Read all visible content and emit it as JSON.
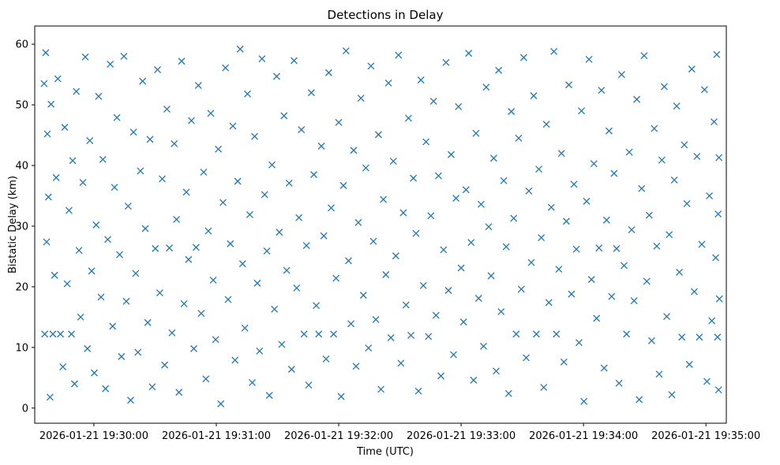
{
  "chart_data": {
    "type": "scatter",
    "title": "Detections in Delay",
    "xlabel": "Time (UTC)",
    "ylabel": "Bistatic Delay (km)",
    "x_unit": "seconds after 2026-01-21 19:30:00",
    "xlim": [
      -29,
      310
    ],
    "ylim": [
      -2.5,
      63
    ],
    "x_ticks": [
      {
        "value": 0,
        "label": "2026-01-21 19:30:00"
      },
      {
        "value": 60,
        "label": "2026-01-21 19:31:00"
      },
      {
        "value": 120,
        "label": "2026-01-21 19:32:00"
      },
      {
        "value": 180,
        "label": "2026-01-21 19:33:00"
      },
      {
        "value": 240,
        "label": "2026-01-21 19:34:00"
      },
      {
        "value": 300,
        "label": "2026-01-21 19:35:00"
      }
    ],
    "y_ticks": [
      0,
      10,
      20,
      30,
      40,
      50,
      60
    ],
    "marker": "x",
    "marker_color": "#1f77b4",
    "series": [
      {
        "name": "Detections",
        "points": [
          [
            -24.4,
            53.5
          ],
          [
            -24.1,
            12.2
          ],
          [
            -23.6,
            58.6
          ],
          [
            -23.2,
            27.4
          ],
          [
            -22.8,
            45.2
          ],
          [
            -22.3,
            34.8
          ],
          [
            -21.5,
            1.8
          ],
          [
            -21.0,
            50.1
          ],
          [
            -20.1,
            12.2
          ],
          [
            -19.3,
            21.9
          ],
          [
            -18.5,
            38.0
          ],
          [
            -17.7,
            54.3
          ],
          [
            -16.4,
            12.2
          ],
          [
            -15.2,
            6.8
          ],
          [
            -14.3,
            46.3
          ],
          [
            -13.1,
            20.5
          ],
          [
            -12.2,
            32.6
          ],
          [
            -11.0,
            12.2
          ],
          [
            -10.4,
            40.8
          ],
          [
            -9.5,
            4.0
          ],
          [
            -8.6,
            52.2
          ],
          [
            -7.3,
            26.0
          ],
          [
            -6.5,
            15.0
          ],
          [
            -5.4,
            37.2
          ],
          [
            -4.2,
            57.9
          ],
          [
            -3.2,
            9.8
          ],
          [
            -2.0,
            44.1
          ],
          [
            -1.1,
            22.6
          ],
          [
            0.2,
            5.8
          ],
          [
            1.1,
            30.2
          ],
          [
            2.3,
            51.4
          ],
          [
            3.5,
            18.3
          ],
          [
            4.4,
            41.0
          ],
          [
            5.7,
            3.2
          ],
          [
            6.8,
            27.8
          ],
          [
            8.0,
            56.7
          ],
          [
            9.2,
            13.5
          ],
          [
            10.1,
            36.4
          ],
          [
            11.3,
            47.9
          ],
          [
            12.6,
            25.3
          ],
          [
            13.5,
            8.5
          ],
          [
            14.7,
            58.0
          ],
          [
            15.9,
            17.6
          ],
          [
            16.8,
            33.3
          ],
          [
            18.0,
            1.3
          ],
          [
            19.4,
            45.5
          ],
          [
            20.5,
            22.2
          ],
          [
            21.6,
            9.2
          ],
          [
            22.8,
            39.1
          ],
          [
            23.9,
            53.9
          ],
          [
            25.2,
            29.6
          ],
          [
            26.4,
            14.1
          ],
          [
            27.5,
            44.3
          ],
          [
            28.6,
            3.5
          ],
          [
            30.1,
            26.3
          ],
          [
            31.2,
            55.8
          ],
          [
            32.3,
            19.0
          ],
          [
            33.5,
            37.8
          ],
          [
            34.7,
            7.1
          ],
          [
            35.8,
            49.3
          ],
          [
            37.0,
            26.4
          ],
          [
            38.3,
            12.4
          ],
          [
            39.4,
            43.6
          ],
          [
            40.5,
            31.1
          ],
          [
            41.7,
            2.6
          ],
          [
            43.0,
            57.2
          ],
          [
            44.2,
            17.2
          ],
          [
            45.3,
            35.6
          ],
          [
            46.4,
            24.5
          ],
          [
            47.8,
            47.4
          ],
          [
            49.0,
            9.8
          ],
          [
            50.1,
            26.5
          ],
          [
            51.2,
            53.2
          ],
          [
            52.6,
            15.6
          ],
          [
            53.8,
            38.9
          ],
          [
            54.9,
            4.8
          ],
          [
            56.1,
            29.2
          ],
          [
            57.3,
            48.6
          ],
          [
            58.5,
            21.1
          ],
          [
            59.7,
            11.3
          ],
          [
            61.0,
            42.7
          ],
          [
            62.2,
            0.7
          ],
          [
            63.3,
            33.9
          ],
          [
            64.5,
            56.1
          ],
          [
            65.8,
            17.9
          ],
          [
            66.9,
            27.1
          ],
          [
            68.1,
            46.5
          ],
          [
            69.2,
            7.9
          ],
          [
            70.5,
            37.4
          ],
          [
            71.7,
            59.2
          ],
          [
            72.9,
            23.8
          ],
          [
            74.0,
            13.2
          ],
          [
            75.3,
            51.8
          ],
          [
            76.4,
            31.9
          ],
          [
            77.6,
            4.2
          ],
          [
            78.8,
            44.8
          ],
          [
            80.1,
            20.6
          ],
          [
            81.2,
            9.4
          ],
          [
            82.4,
            57.6
          ],
          [
            83.7,
            35.2
          ],
          [
            84.8,
            25.9
          ],
          [
            86.0,
            2.1
          ],
          [
            87.3,
            40.1
          ],
          [
            88.5,
            16.3
          ],
          [
            89.6,
            54.7
          ],
          [
            90.9,
            29.0
          ],
          [
            92.1,
            10.5
          ],
          [
            93.2,
            48.2
          ],
          [
            94.5,
            22.7
          ],
          [
            95.7,
            37.1
          ],
          [
            96.9,
            6.4
          ],
          [
            98.1,
            57.3
          ],
          [
            99.4,
            19.8
          ],
          [
            100.5,
            31.4
          ],
          [
            101.7,
            45.9
          ],
          [
            103.0,
            12.2
          ],
          [
            104.2,
            26.8
          ],
          [
            105.3,
            3.8
          ],
          [
            106.6,
            52.0
          ],
          [
            107.8,
            38.5
          ],
          [
            109.0,
            16.9
          ],
          [
            110.2,
            12.2
          ],
          [
            111.5,
            43.2
          ],
          [
            112.7,
            28.4
          ],
          [
            113.8,
            8.1
          ],
          [
            115.1,
            55.3
          ],
          [
            116.3,
            33.0
          ],
          [
            117.5,
            12.2
          ],
          [
            118.7,
            21.4
          ],
          [
            120.0,
            47.1
          ],
          [
            121.2,
            1.9
          ],
          [
            122.3,
            36.7
          ],
          [
            123.6,
            58.9
          ],
          [
            124.8,
            24.3
          ],
          [
            126.0,
            13.9
          ],
          [
            127.3,
            42.5
          ],
          [
            128.5,
            6.9
          ],
          [
            129.6,
            30.6
          ],
          [
            130.9,
            51.1
          ],
          [
            132.1,
            18.6
          ],
          [
            133.3,
            39.6
          ],
          [
            134.6,
            9.9
          ],
          [
            135.8,
            56.4
          ],
          [
            137.0,
            27.5
          ],
          [
            138.2,
            14.6
          ],
          [
            139.5,
            45.1
          ],
          [
            140.7,
            3.1
          ],
          [
            141.9,
            34.4
          ],
          [
            143.1,
            22.0
          ],
          [
            144.4,
            53.6
          ],
          [
            145.6,
            11.6
          ],
          [
            146.8,
            40.7
          ],
          [
            148.0,
            25.1
          ],
          [
            149.3,
            58.2
          ],
          [
            150.5,
            7.4
          ],
          [
            151.7,
            32.2
          ],
          [
            153.0,
            17.0
          ],
          [
            154.2,
            47.8
          ],
          [
            155.4,
            12.0
          ],
          [
            156.6,
            37.9
          ],
          [
            157.9,
            28.8
          ],
          [
            159.1,
            2.8
          ],
          [
            160.3,
            54.1
          ],
          [
            161.5,
            20.2
          ],
          [
            162.8,
            43.9
          ],
          [
            164.0,
            11.8
          ],
          [
            165.2,
            31.7
          ],
          [
            166.5,
            50.6
          ],
          [
            167.7,
            15.3
          ],
          [
            168.9,
            38.3
          ],
          [
            170.1,
            5.3
          ],
          [
            171.4,
            26.1
          ],
          [
            172.6,
            57.0
          ],
          [
            173.8,
            19.4
          ],
          [
            175.1,
            41.8
          ],
          [
            176.3,
            8.8
          ],
          [
            177.5,
            34.6
          ],
          [
            178.7,
            49.7
          ],
          [
            180.0,
            23.1
          ],
          [
            181.2,
            14.2
          ],
          [
            182.4,
            36.0
          ],
          [
            183.7,
            58.5
          ],
          [
            184.9,
            27.3
          ],
          [
            186.1,
            4.6
          ],
          [
            187.3,
            45.3
          ],
          [
            188.6,
            18.1
          ],
          [
            189.8,
            33.6
          ],
          [
            191.0,
            10.2
          ],
          [
            192.3,
            52.9
          ],
          [
            193.5,
            29.9
          ],
          [
            194.7,
            21.8
          ],
          [
            196.0,
            41.2
          ],
          [
            197.2,
            6.1
          ],
          [
            198.4,
            55.7
          ],
          [
            199.6,
            15.9
          ],
          [
            200.9,
            37.5
          ],
          [
            202.1,
            26.6
          ],
          [
            203.3,
            2.4
          ],
          [
            204.6,
            48.9
          ],
          [
            205.8,
            31.3
          ],
          [
            207.0,
            12.2
          ],
          [
            208.2,
            44.5
          ],
          [
            209.5,
            19.6
          ],
          [
            210.7,
            57.8
          ],
          [
            211.9,
            8.3
          ],
          [
            213.2,
            35.8
          ],
          [
            214.4,
            24.0
          ],
          [
            215.6,
            51.5
          ],
          [
            216.9,
            12.2
          ],
          [
            218.1,
            39.4
          ],
          [
            219.3,
            28.1
          ],
          [
            220.5,
            3.4
          ],
          [
            221.8,
            46.8
          ],
          [
            223.0,
            17.4
          ],
          [
            224.2,
            33.1
          ],
          [
            225.5,
            58.8
          ],
          [
            226.7,
            12.2
          ],
          [
            227.9,
            22.9
          ],
          [
            229.2,
            42.0
          ],
          [
            230.4,
            7.6
          ],
          [
            231.6,
            30.8
          ],
          [
            232.8,
            53.3
          ],
          [
            234.1,
            18.8
          ],
          [
            235.3,
            36.9
          ],
          [
            236.5,
            26.2
          ],
          [
            237.8,
            10.8
          ],
          [
            239.0,
            49.0
          ],
          [
            240.2,
            1.1
          ],
          [
            241.5,
            34.1
          ],
          [
            242.7,
            57.5
          ],
          [
            243.9,
            21.2
          ],
          [
            245.1,
            40.3
          ],
          [
            246.4,
            14.8
          ],
          [
            247.6,
            26.4
          ],
          [
            248.8,
            52.4
          ],
          [
            250.1,
            6.6
          ],
          [
            251.3,
            31.0
          ],
          [
            252.5,
            45.7
          ],
          [
            253.8,
            18.4
          ],
          [
            255.0,
            38.7
          ],
          [
            256.2,
            26.3
          ],
          [
            257.4,
            4.1
          ],
          [
            258.7,
            55.0
          ],
          [
            259.9,
            23.5
          ],
          [
            261.1,
            12.2
          ],
          [
            262.4,
            42.2
          ],
          [
            263.6,
            29.4
          ],
          [
            264.8,
            17.7
          ],
          [
            266.1,
            50.9
          ],
          [
            267.3,
            1.4
          ],
          [
            268.5,
            36.2
          ],
          [
            269.7,
            58.1
          ],
          [
            271.0,
            20.9
          ],
          [
            272.2,
            31.8
          ],
          [
            273.4,
            11.1
          ],
          [
            274.7,
            46.1
          ],
          [
            275.9,
            26.7
          ],
          [
            277.1,
            5.6
          ],
          [
            278.4,
            40.9
          ],
          [
            279.6,
            53.0
          ],
          [
            280.8,
            15.1
          ],
          [
            282.0,
            28.6
          ],
          [
            283.3,
            2.2
          ],
          [
            284.5,
            37.6
          ],
          [
            285.7,
            49.8
          ],
          [
            287.0,
            22.4
          ],
          [
            288.2,
            11.7
          ],
          [
            289.4,
            43.4
          ],
          [
            290.7,
            33.7
          ],
          [
            291.9,
            7.2
          ],
          [
            293.1,
            55.9
          ],
          [
            294.3,
            19.2
          ],
          [
            295.6,
            41.5
          ],
          [
            296.8,
            11.7
          ],
          [
            298.0,
            27.0
          ],
          [
            299.3,
            52.5
          ],
          [
            300.5,
            4.4
          ],
          [
            301.7,
            35.0
          ],
          [
            302.9,
            14.4
          ],
          [
            304.0,
            47.2
          ],
          [
            304.8,
            24.8
          ],
          [
            305.3,
            58.3
          ],
          [
            305.7,
            11.7
          ],
          [
            306.0,
            32.0
          ],
          [
            306.2,
            3.0
          ],
          [
            306.4,
            41.3
          ],
          [
            306.6,
            18.0
          ]
        ]
      }
    ]
  }
}
